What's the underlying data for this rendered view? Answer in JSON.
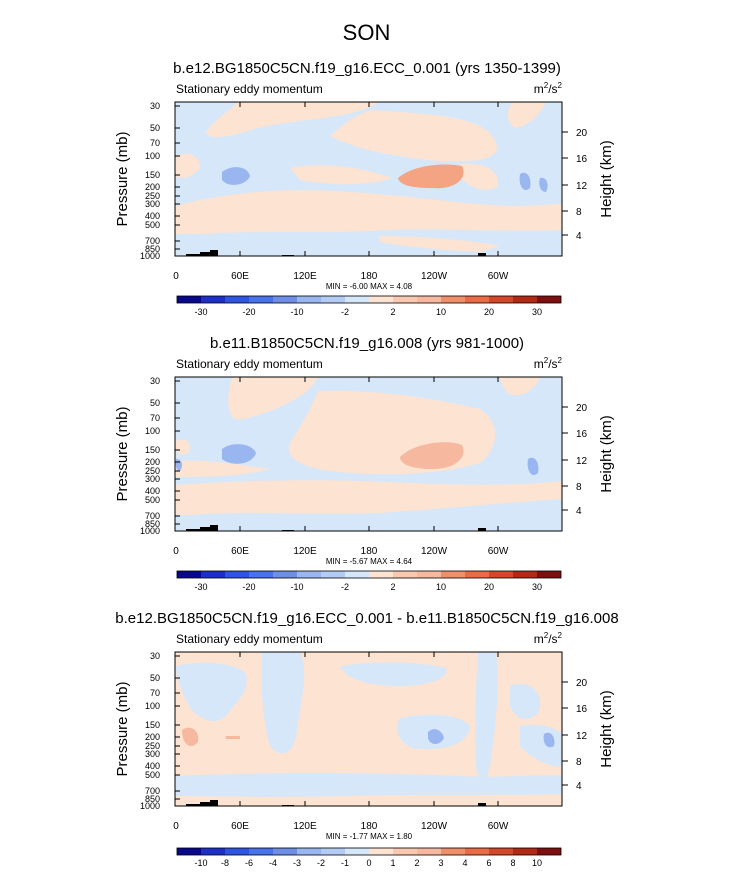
{
  "page_title": "SON",
  "colors": {
    "blue_light": "#d6e7f9",
    "peach_light": "#fde3d1",
    "blue_med": "#9ab6f0",
    "peach_med": "#f6b99f",
    "blue_dark": "#6f8fe6",
    "orange_dark": "#f4a383"
  },
  "chart_data": [
    {
      "type": "contour",
      "title": "b.e12.BG1850C5CN.f19_g16.ECC_0.001 (yrs 1350-1399)",
      "subtitle": "Stationary eddy momentum",
      "units": {
        "base": "m",
        "exp1": "2",
        "mid": "/s",
        "exp2": "2"
      },
      "ylabel": "Pressure (mb)",
      "ylabel_right": "Height (km)",
      "xticks": [
        "0",
        "60E",
        "120E",
        "180",
        "120W",
        "60W"
      ],
      "yticks": [
        "30",
        "50",
        "70",
        "100",
        "150",
        "200",
        "250",
        "300",
        "400",
        "500",
        "700",
        "850",
        "1000"
      ],
      "height_ticks": [
        "20",
        "16",
        "12",
        "8",
        "4"
      ],
      "stats": "MIN =  -6.00  MAX =  4.08",
      "min": -6.0,
      "max": 4.08,
      "colorbar_labels": [
        "-30",
        "-20",
        "-10",
        "-2",
        "2",
        "10",
        "20",
        "30"
      ]
    },
    {
      "type": "contour",
      "title": "b.e11.B1850C5CN.f19_g16.008 (yrs 981-1000)",
      "subtitle": "Stationary eddy momentum",
      "units": {
        "base": "m",
        "exp1": "2",
        "mid": "/s",
        "exp2": "2"
      },
      "ylabel": "Pressure (mb)",
      "ylabel_right": "Height (km)",
      "xticks": [
        "0",
        "60E",
        "120E",
        "180",
        "120W",
        "60W"
      ],
      "yticks": [
        "30",
        "50",
        "70",
        "100",
        "150",
        "200",
        "250",
        "300",
        "400",
        "500",
        "700",
        "850",
        "1000"
      ],
      "height_ticks": [
        "20",
        "16",
        "12",
        "8",
        "4"
      ],
      "stats": "MIN =  -5.67  MAX =  4.64",
      "min": -5.67,
      "max": 4.64,
      "colorbar_labels": [
        "-30",
        "-20",
        "-10",
        "-2",
        "2",
        "10",
        "20",
        "30"
      ]
    },
    {
      "type": "contour",
      "title": "b.e12.BG1850C5CN.f19_g16.ECC_0.001 - b.e11.B1850C5CN.f19_g16.008",
      "subtitle": "Stationary eddy momentum",
      "units": {
        "base": "m",
        "exp1": "2",
        "mid": "/s",
        "exp2": "2"
      },
      "ylabel": "Pressure (mb)",
      "ylabel_right": "Height (km)",
      "xticks": [
        "0",
        "60E",
        "120E",
        "180",
        "120W",
        "60W"
      ],
      "yticks": [
        "30",
        "50",
        "70",
        "100",
        "150",
        "200",
        "250",
        "300",
        "400",
        "500",
        "700",
        "850",
        "1000"
      ],
      "height_ticks": [
        "20",
        "16",
        "12",
        "8",
        "4"
      ],
      "stats": "MIN =  -1.77  MAX =  1.80",
      "min": -1.77,
      "max": 1.8,
      "colorbar_labels": [
        "-10",
        "-8",
        "-6",
        "-4",
        "-3",
        "-2",
        "-1",
        "0",
        "1",
        "2",
        "3",
        "4",
        "6",
        "8",
        "10"
      ]
    }
  ]
}
